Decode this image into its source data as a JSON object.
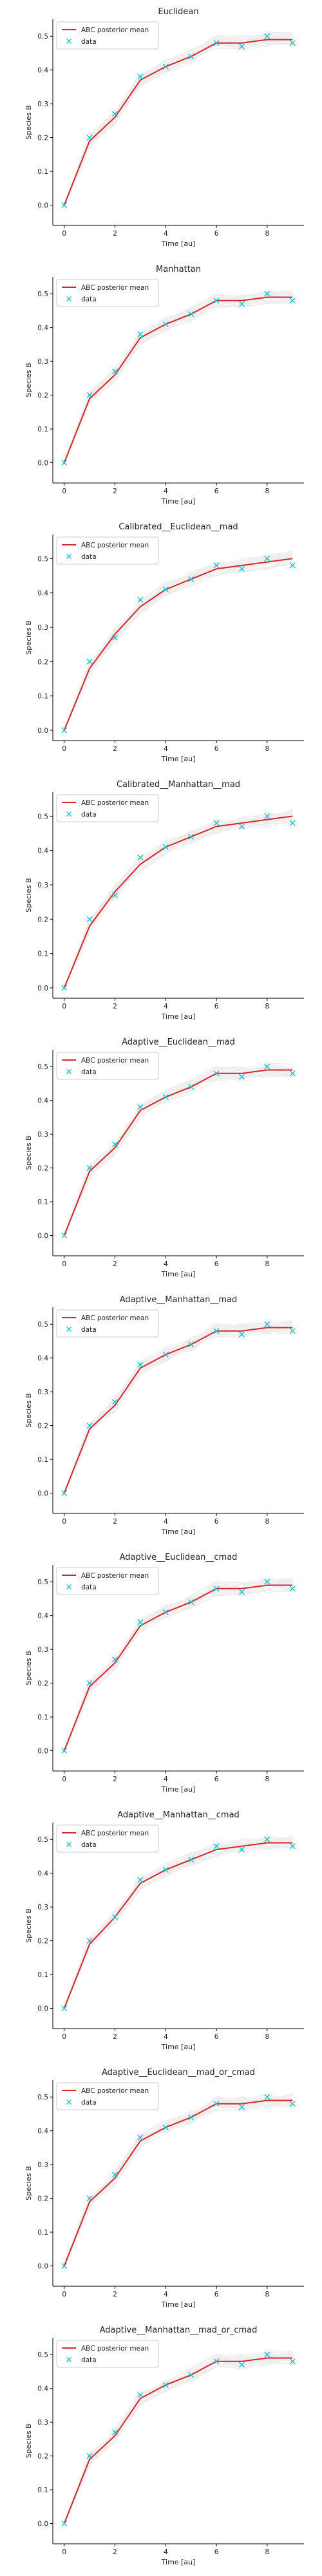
{
  "chart_data": [
    {
      "type": "line",
      "title": "Euclidean",
      "xlabel": "Time [au]",
      "ylabel": "Species B",
      "xlim": [
        -0.45,
        9.45
      ],
      "ylim": [
        -0.06,
        0.55
      ],
      "xticks": [
        0,
        2,
        4,
        6,
        8
      ],
      "yticks": [
        0.0,
        0.1,
        0.2,
        0.3,
        0.4,
        0.5
      ],
      "legend": "top-left",
      "series": [
        {
          "name": "ABC posterior mean",
          "style": "line",
          "color": "#d62728",
          "x": [
            0,
            1,
            2,
            3,
            4,
            5,
            6,
            7,
            8,
            9
          ],
          "y": [
            0.0,
            0.19,
            0.26,
            0.37,
            0.41,
            0.44,
            0.48,
            0.48,
            0.49,
            0.49
          ]
        },
        {
          "name": "data",
          "style": "marker",
          "color": "#17becf",
          "x": [
            0,
            1,
            2,
            3,
            4,
            5,
            6,
            7,
            8,
            9
          ],
          "y": [
            0.0,
            0.2,
            0.27,
            0.38,
            0.41,
            0.44,
            0.48,
            0.47,
            0.5,
            0.48
          ]
        }
      ]
    },
    {
      "type": "line",
      "title": "Manhattan",
      "xlabel": "Time [au]",
      "ylabel": "Species B",
      "xlim": [
        -0.45,
        9.45
      ],
      "ylim": [
        -0.06,
        0.55
      ],
      "xticks": [
        0,
        2,
        4,
        6,
        8
      ],
      "yticks": [
        0.0,
        0.1,
        0.2,
        0.3,
        0.4,
        0.5
      ],
      "legend": "top-left",
      "series": [
        {
          "name": "ABC posterior mean",
          "style": "line",
          "color": "#d62728",
          "x": [
            0,
            1,
            2,
            3,
            4,
            5,
            6,
            7,
            8,
            9
          ],
          "y": [
            0.0,
            0.19,
            0.26,
            0.37,
            0.41,
            0.44,
            0.48,
            0.48,
            0.49,
            0.49
          ]
        },
        {
          "name": "data",
          "style": "marker",
          "color": "#17becf",
          "x": [
            0,
            1,
            2,
            3,
            4,
            5,
            6,
            7,
            8,
            9
          ],
          "y": [
            0.0,
            0.2,
            0.27,
            0.38,
            0.41,
            0.44,
            0.48,
            0.47,
            0.5,
            0.48
          ]
        }
      ]
    },
    {
      "type": "line",
      "title": "Calibrated__Euclidean__mad",
      "xlabel": "Time [au]",
      "ylabel": "Species B",
      "xlim": [
        -0.45,
        9.45
      ],
      "ylim": [
        -0.03,
        0.57
      ],
      "xticks": [
        0,
        2,
        4,
        6,
        8
      ],
      "yticks": [
        0.0,
        0.1,
        0.2,
        0.3,
        0.4,
        0.5
      ],
      "legend": "top-left",
      "series": [
        {
          "name": "ABC posterior mean",
          "style": "line",
          "color": "#d62728",
          "x": [
            0,
            1,
            2,
            3,
            4,
            5,
            6,
            7,
            8,
            9
          ],
          "y": [
            0.0,
            0.18,
            0.28,
            0.36,
            0.41,
            0.44,
            0.47,
            0.48,
            0.49,
            0.5
          ]
        },
        {
          "name": "data",
          "style": "marker",
          "color": "#17becf",
          "x": [
            0,
            1,
            2,
            3,
            4,
            5,
            6,
            7,
            8,
            9
          ],
          "y": [
            0.0,
            0.2,
            0.27,
            0.38,
            0.41,
            0.44,
            0.48,
            0.47,
            0.5,
            0.48
          ]
        }
      ]
    },
    {
      "type": "line",
      "title": "Calibrated__Manhattan__mad",
      "xlabel": "Time [au]",
      "ylabel": "Species B",
      "xlim": [
        -0.45,
        9.45
      ],
      "ylim": [
        -0.03,
        0.57
      ],
      "xticks": [
        0,
        2,
        4,
        6,
        8
      ],
      "yticks": [
        0.0,
        0.1,
        0.2,
        0.3,
        0.4,
        0.5
      ],
      "legend": "top-left",
      "series": [
        {
          "name": "ABC posterior mean",
          "style": "line",
          "color": "#d62728",
          "x": [
            0,
            1,
            2,
            3,
            4,
            5,
            6,
            7,
            8,
            9
          ],
          "y": [
            0.0,
            0.18,
            0.28,
            0.36,
            0.41,
            0.44,
            0.47,
            0.48,
            0.49,
            0.5
          ]
        },
        {
          "name": "data",
          "style": "marker",
          "color": "#17becf",
          "x": [
            0,
            1,
            2,
            3,
            4,
            5,
            6,
            7,
            8,
            9
          ],
          "y": [
            0.0,
            0.2,
            0.27,
            0.38,
            0.41,
            0.44,
            0.48,
            0.47,
            0.5,
            0.48
          ]
        }
      ]
    },
    {
      "type": "line",
      "title": "Adaptive__Euclidean__mad",
      "xlabel": "Time [au]",
      "ylabel": "Species B",
      "xlim": [
        -0.45,
        9.45
      ],
      "ylim": [
        -0.06,
        0.55
      ],
      "xticks": [
        0,
        2,
        4,
        6,
        8
      ],
      "yticks": [
        0.0,
        0.1,
        0.2,
        0.3,
        0.4,
        0.5
      ],
      "legend": "top-left",
      "series": [
        {
          "name": "ABC posterior mean",
          "style": "line",
          "color": "#d62728",
          "x": [
            0,
            1,
            2,
            3,
            4,
            5,
            6,
            7,
            8,
            9
          ],
          "y": [
            0.0,
            0.19,
            0.26,
            0.37,
            0.41,
            0.44,
            0.48,
            0.48,
            0.49,
            0.49
          ]
        },
        {
          "name": "data",
          "style": "marker",
          "color": "#17becf",
          "x": [
            0,
            1,
            2,
            3,
            4,
            5,
            6,
            7,
            8,
            9
          ],
          "y": [
            0.0,
            0.2,
            0.27,
            0.38,
            0.41,
            0.44,
            0.48,
            0.47,
            0.5,
            0.48
          ]
        }
      ]
    },
    {
      "type": "line",
      "title": "Adaptive__Manhattan__mad",
      "xlabel": "Time [au]",
      "ylabel": "Species B",
      "xlim": [
        -0.45,
        9.45
      ],
      "ylim": [
        -0.06,
        0.55
      ],
      "xticks": [
        0,
        2,
        4,
        6,
        8
      ],
      "yticks": [
        0.0,
        0.1,
        0.2,
        0.3,
        0.4,
        0.5
      ],
      "legend": "top-left",
      "series": [
        {
          "name": "ABC posterior mean",
          "style": "line",
          "color": "#d62728",
          "x": [
            0,
            1,
            2,
            3,
            4,
            5,
            6,
            7,
            8,
            9
          ],
          "y": [
            0.0,
            0.19,
            0.26,
            0.37,
            0.41,
            0.44,
            0.48,
            0.48,
            0.49,
            0.49
          ]
        },
        {
          "name": "data",
          "style": "marker",
          "color": "#17becf",
          "x": [
            0,
            1,
            2,
            3,
            4,
            5,
            6,
            7,
            8,
            9
          ],
          "y": [
            0.0,
            0.2,
            0.27,
            0.38,
            0.41,
            0.44,
            0.48,
            0.47,
            0.5,
            0.48
          ]
        }
      ]
    },
    {
      "type": "line",
      "title": "Adaptive__Euclidean__cmad",
      "xlabel": "Time [au]",
      "ylabel": "Species B",
      "xlim": [
        -0.45,
        9.45
      ],
      "ylim": [
        -0.06,
        0.55
      ],
      "xticks": [
        0,
        2,
        4,
        6,
        8
      ],
      "yticks": [
        0.0,
        0.1,
        0.2,
        0.3,
        0.4,
        0.5
      ],
      "legend": "top-left",
      "series": [
        {
          "name": "ABC posterior mean",
          "style": "line",
          "color": "#d62728",
          "x": [
            0,
            1,
            2,
            3,
            4,
            5,
            6,
            7,
            8,
            9
          ],
          "y": [
            0.0,
            0.19,
            0.26,
            0.37,
            0.41,
            0.44,
            0.48,
            0.48,
            0.49,
            0.49
          ]
        },
        {
          "name": "data",
          "style": "marker",
          "color": "#17becf",
          "x": [
            0,
            1,
            2,
            3,
            4,
            5,
            6,
            7,
            8,
            9
          ],
          "y": [
            0.0,
            0.2,
            0.27,
            0.38,
            0.41,
            0.44,
            0.48,
            0.47,
            0.5,
            0.48
          ]
        }
      ]
    },
    {
      "type": "line",
      "title": "Adaptive__Manhattan__cmad",
      "xlabel": "Time [au]",
      "ylabel": "Species B",
      "xlim": [
        -0.45,
        9.45
      ],
      "ylim": [
        -0.06,
        0.55
      ],
      "xticks": [
        0,
        2,
        4,
        6,
        8
      ],
      "yticks": [
        0.0,
        0.1,
        0.2,
        0.3,
        0.4,
        0.5
      ],
      "legend": "top-left",
      "series": [
        {
          "name": "ABC posterior mean",
          "style": "line",
          "color": "#d62728",
          "x": [
            0,
            1,
            2,
            3,
            4,
            5,
            6,
            7,
            8,
            9
          ],
          "y": [
            0.0,
            0.19,
            0.27,
            0.37,
            0.41,
            0.44,
            0.47,
            0.48,
            0.49,
            0.49
          ]
        },
        {
          "name": "data",
          "style": "marker",
          "color": "#17becf",
          "x": [
            0,
            1,
            2,
            3,
            4,
            5,
            6,
            7,
            8,
            9
          ],
          "y": [
            0.0,
            0.2,
            0.27,
            0.38,
            0.41,
            0.44,
            0.48,
            0.47,
            0.5,
            0.48
          ]
        }
      ]
    },
    {
      "type": "line",
      "title": "Adaptive__Euclidean__mad_or_cmad",
      "xlabel": "Time [au]",
      "ylabel": "Species B",
      "xlim": [
        -0.45,
        9.45
      ],
      "ylim": [
        -0.06,
        0.55
      ],
      "xticks": [
        0,
        2,
        4,
        6,
        8
      ],
      "yticks": [
        0.0,
        0.1,
        0.2,
        0.3,
        0.4,
        0.5
      ],
      "legend": "top-left",
      "series": [
        {
          "name": "ABC posterior mean",
          "style": "line",
          "color": "#d62728",
          "x": [
            0,
            1,
            2,
            3,
            4,
            5,
            6,
            7,
            8,
            9
          ],
          "y": [
            0.0,
            0.19,
            0.26,
            0.37,
            0.41,
            0.44,
            0.48,
            0.48,
            0.49,
            0.49
          ]
        },
        {
          "name": "data",
          "style": "marker",
          "color": "#17becf",
          "x": [
            0,
            1,
            2,
            3,
            4,
            5,
            6,
            7,
            8,
            9
          ],
          "y": [
            0.0,
            0.2,
            0.27,
            0.38,
            0.41,
            0.44,
            0.48,
            0.47,
            0.5,
            0.48
          ]
        }
      ]
    },
    {
      "type": "line",
      "title": "Adaptive__Manhattan__mad_or_cmad",
      "xlabel": "Time [au]",
      "ylabel": "Species B",
      "xlim": [
        -0.45,
        9.45
      ],
      "ylim": [
        -0.06,
        0.55
      ],
      "xticks": [
        0,
        2,
        4,
        6,
        8
      ],
      "yticks": [
        0.0,
        0.1,
        0.2,
        0.3,
        0.4,
        0.5
      ],
      "legend": "top-left",
      "series": [
        {
          "name": "ABC posterior mean",
          "style": "line",
          "color": "#d62728",
          "x": [
            0,
            1,
            2,
            3,
            4,
            5,
            6,
            7,
            8,
            9
          ],
          "y": [
            0.0,
            0.19,
            0.26,
            0.37,
            0.41,
            0.44,
            0.48,
            0.48,
            0.49,
            0.49
          ]
        },
        {
          "name": "data",
          "style": "marker",
          "color": "#17becf",
          "x": [
            0,
            1,
            2,
            3,
            4,
            5,
            6,
            7,
            8,
            9
          ],
          "y": [
            0.0,
            0.2,
            0.27,
            0.38,
            0.41,
            0.44,
            0.48,
            0.47,
            0.5,
            0.48
          ]
        }
      ]
    }
  ]
}
